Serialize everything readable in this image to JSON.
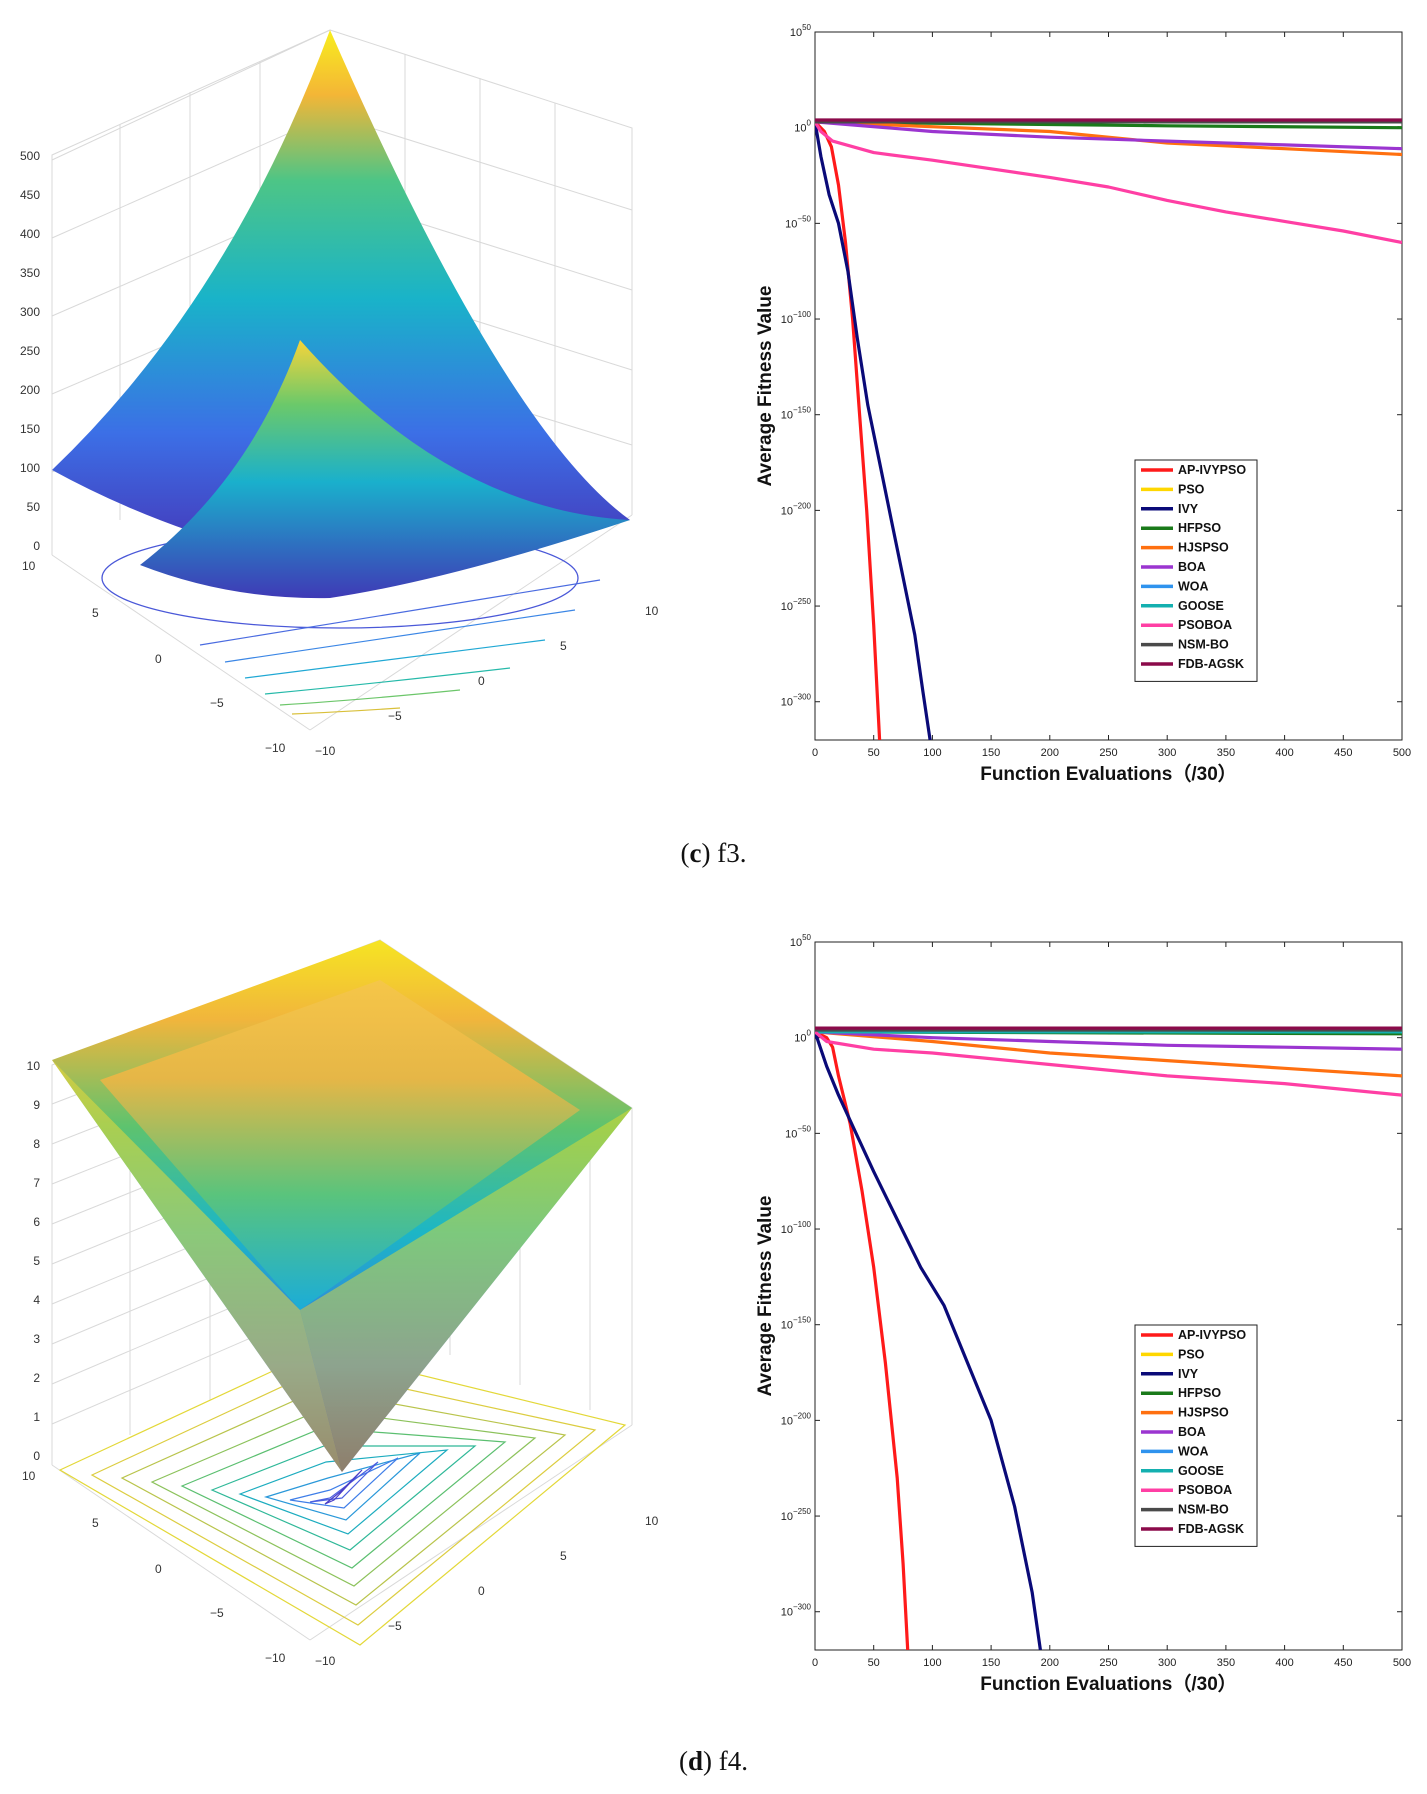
{
  "colors": {
    "AP-IVYPSO": "#ff1a1a",
    "PSO": "#ffd700",
    "IVY": "#0a0a78",
    "HFPSO": "#1a7a1a",
    "HJSPSO": "#ff7010",
    "BOA": "#9b35d0",
    "WOA": "#2f93ee",
    "GOOSE": "#14b0b0",
    "PSOBOA": "#ff3fa4",
    "NSM-BO": "#4a4a4a",
    "FDB-AGSK": "#8b0a4a"
  },
  "captions": [
    {
      "label": "c",
      "text": " f3."
    },
    {
      "label": "d",
      "text": " f4."
    }
  ],
  "surfaces": [
    {
      "name": "f3-surface",
      "z_ticks": [
        "0",
        "50",
        "100",
        "150",
        "200",
        "250",
        "300",
        "350",
        "400",
        "450",
        "500"
      ],
      "y_ticks": [
        "10",
        "5",
        "0",
        "−5",
        "−10"
      ],
      "x_ticks": [
        "−10",
        "−5",
        "0",
        "5",
        "10"
      ]
    },
    {
      "name": "f4-surface",
      "z_ticks": [
        "0",
        "1",
        "2",
        "3",
        "4",
        "5",
        "6",
        "7",
        "8",
        "9",
        "10"
      ],
      "y_ticks": [
        "10",
        "5",
        "0",
        "−5",
        "−10"
      ],
      "x_ticks": [
        "−10",
        "−5",
        "0",
        "5",
        "10"
      ]
    }
  ],
  "chart_data": [
    {
      "type": "line",
      "title": "",
      "xlabel": "Function Evaluations（/30）",
      "ylabel": "Average Fitness Value",
      "y_scale": "log",
      "xlim": [
        0,
        500
      ],
      "ylim_exponent": [
        -320,
        50
      ],
      "x_ticks": [
        "0",
        "50",
        "100",
        "150",
        "200",
        "250",
        "300",
        "350",
        "400",
        "450",
        "500"
      ],
      "y_tick_base": "10",
      "y_tick_exponents": [
        "50",
        "0",
        "−50",
        "−100",
        "−150",
        "−200",
        "−250",
        "−300"
      ],
      "legend_position": "lower-right",
      "legend": [
        "AP-IVYPSO",
        "PSO",
        "IVY",
        "HFPSO",
        "HJSPSO",
        "BOA",
        "WOA",
        "GOOSE",
        "PSOBOA",
        "NSM-BO",
        "FDB-AGSK"
      ],
      "series": [
        {
          "name": "AP-IVYPSO",
          "points": [
            [
              0,
              3
            ],
            [
              8,
              -2
            ],
            [
              14,
              -10
            ],
            [
              20,
              -30
            ],
            [
              26,
              -60
            ],
            [
              32,
              -100
            ],
            [
              38,
              -150
            ],
            [
              44,
              -200
            ],
            [
              50,
              -260
            ],
            [
              55,
              -320
            ]
          ]
        },
        {
          "name": "PSO",
          "points": [
            [
              0,
              3
            ],
            [
              500,
              3
            ]
          ]
        },
        {
          "name": "IVY",
          "points": [
            [
              0,
              3
            ],
            [
              5,
              -15
            ],
            [
              12,
              -35
            ],
            [
              20,
              -50
            ],
            [
              28,
              -75
            ],
            [
              36,
              -110
            ],
            [
              45,
              -145
            ],
            [
              55,
              -175
            ],
            [
              65,
              -205
            ],
            [
              75,
              -235
            ],
            [
              85,
              -265
            ],
            [
              92,
              -295
            ],
            [
              98,
              -320
            ]
          ]
        },
        {
          "name": "HFPSO",
          "points": [
            [
              0,
              3
            ],
            [
              300,
              1
            ],
            [
              500,
              0
            ]
          ]
        },
        {
          "name": "HJSPSO",
          "points": [
            [
              0,
              3
            ],
            [
              200,
              -2
            ],
            [
              300,
              -8
            ],
            [
              400,
              -11
            ],
            [
              500,
              -14
            ]
          ]
        },
        {
          "name": "BOA",
          "points": [
            [
              0,
              3
            ],
            [
              100,
              -2
            ],
            [
              200,
              -5
            ],
            [
              300,
              -7
            ],
            [
              400,
              -9
            ],
            [
              500,
              -11
            ]
          ]
        },
        {
          "name": "WOA",
          "points": [
            [
              0,
              3
            ],
            [
              500,
              3
            ]
          ]
        },
        {
          "name": "GOOSE",
          "points": [
            [
              0,
              3
            ],
            [
              500,
              3
            ]
          ]
        },
        {
          "name": "PSOBOA",
          "points": [
            [
              0,
              3
            ],
            [
              5,
              -2
            ],
            [
              15,
              -7
            ],
            [
              50,
              -13
            ],
            [
              100,
              -17
            ],
            [
              200,
              -26
            ],
            [
              250,
              -31
            ],
            [
              300,
              -38
            ],
            [
              350,
              -44
            ],
            [
              400,
              -49
            ],
            [
              450,
              -54
            ],
            [
              500,
              -60
            ]
          ]
        },
        {
          "name": "NSM-BO",
          "points": [
            [
              0,
              3
            ],
            [
              500,
              3
            ]
          ]
        },
        {
          "name": "FDB-AGSK",
          "points": [
            [
              0,
              4
            ],
            [
              500,
              4
            ]
          ]
        }
      ]
    },
    {
      "type": "line",
      "title": "",
      "xlabel": "Function Evaluations（/30）",
      "ylabel": "Average Fitness Value",
      "y_scale": "log",
      "xlim": [
        0,
        500
      ],
      "ylim_exponent": [
        -320,
        50
      ],
      "x_ticks": [
        "0",
        "50",
        "100",
        "150",
        "200",
        "250",
        "300",
        "350",
        "400",
        "450",
        "500"
      ],
      "y_tick_base": "10",
      "y_tick_exponents": [
        "50",
        "0",
        "−50",
        "−100",
        "−150",
        "−200",
        "−250",
        "−300"
      ],
      "legend_position": "lower-right",
      "legend": [
        "AP-IVYPSO",
        "PSO",
        "IVY",
        "HFPSO",
        "HJSPSO",
        "BOA",
        "WOA",
        "GOOSE",
        "PSOBOA",
        "NSM-BO",
        "FDB-AGSK"
      ],
      "series": [
        {
          "name": "AP-IVYPSO",
          "points": [
            [
              0,
              3
            ],
            [
              10,
              0
            ],
            [
              15,
              -5
            ],
            [
              20,
              -20
            ],
            [
              30,
              -45
            ],
            [
              40,
              -80
            ],
            [
              50,
              -120
            ],
            [
              60,
              -170
            ],
            [
              70,
              -230
            ],
            [
              75,
              -275
            ],
            [
              79,
              -320
            ]
          ]
        },
        {
          "name": "PSO",
          "points": [
            [
              0,
              3
            ],
            [
              500,
              3
            ]
          ]
        },
        {
          "name": "IVY",
          "points": [
            [
              0,
              3
            ],
            [
              10,
              -15
            ],
            [
              20,
              -30
            ],
            [
              35,
              -50
            ],
            [
              50,
              -70
            ],
            [
              70,
              -95
            ],
            [
              90,
              -120
            ],
            [
              110,
              -140
            ],
            [
              130,
              -170
            ],
            [
              150,
              -200
            ],
            [
              170,
              -245
            ],
            [
              185,
              -290
            ],
            [
              192,
              -320
            ]
          ]
        },
        {
          "name": "HFPSO",
          "points": [
            [
              0,
              3
            ],
            [
              500,
              2
            ]
          ]
        },
        {
          "name": "HJSPSO",
          "points": [
            [
              0,
              3
            ],
            [
              100,
              -2
            ],
            [
              200,
              -8
            ],
            [
              300,
              -12
            ],
            [
              400,
              -16
            ],
            [
              500,
              -20
            ]
          ]
        },
        {
          "name": "BOA",
          "points": [
            [
              0,
              3
            ],
            [
              100,
              0
            ],
            [
              200,
              -2
            ],
            [
              300,
              -4
            ],
            [
              400,
              -5
            ],
            [
              500,
              -6
            ]
          ]
        },
        {
          "name": "WOA",
          "points": [
            [
              0,
              3
            ],
            [
              500,
              3
            ]
          ]
        },
        {
          "name": "GOOSE",
          "points": [
            [
              0,
              3
            ],
            [
              500,
              3
            ]
          ]
        },
        {
          "name": "PSOBOA",
          "points": [
            [
              0,
              3
            ],
            [
              10,
              -2
            ],
            [
              50,
              -6
            ],
            [
              100,
              -8
            ],
            [
              200,
              -14
            ],
            [
              300,
              -20
            ],
            [
              400,
              -24
            ],
            [
              500,
              -30
            ]
          ]
        },
        {
          "name": "NSM-BO",
          "points": [
            [
              0,
              4
            ],
            [
              500,
              4
            ]
          ]
        },
        {
          "name": "FDB-AGSK",
          "points": [
            [
              0,
              5
            ],
            [
              500,
              5
            ]
          ]
        }
      ]
    }
  ]
}
